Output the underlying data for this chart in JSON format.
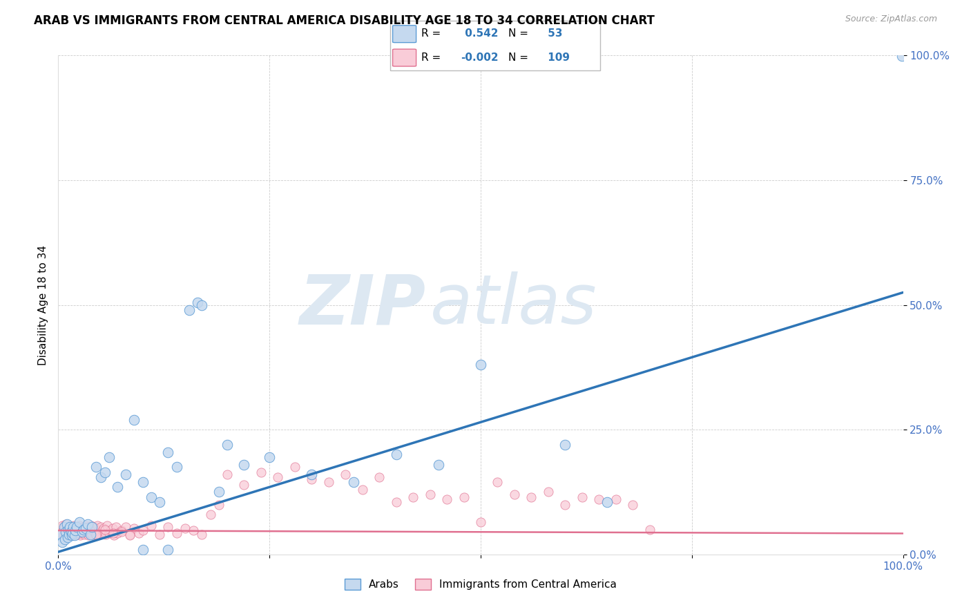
{
  "title": "ARAB VS IMMIGRANTS FROM CENTRAL AMERICA DISABILITY AGE 18 TO 34 CORRELATION CHART",
  "source": "Source: ZipAtlas.com",
  "ylabel": "Disability Age 18 to 34",
  "xlim": [
    0,
    1
  ],
  "ylim": [
    0,
    1
  ],
  "xticks": [
    0,
    0.25,
    0.5,
    0.75,
    1.0
  ],
  "yticks": [
    0,
    0.25,
    0.5,
    0.75,
    1.0
  ],
  "xticklabels": [
    "0.0%",
    "",
    "",
    "",
    "100.0%"
  ],
  "yticklabels": [
    "0.0%",
    "25.0%",
    "50.0%",
    "75.0%",
    "100.0%"
  ],
  "arab_fill_color": "#c5d9ef",
  "arab_edge_color": "#5b9bd5",
  "immigrant_fill_color": "#f9ccd8",
  "immigrant_edge_color": "#e07090",
  "arab_line_color": "#2e75b6",
  "immigrant_line_color": "#e07090",
  "arab_R": 0.542,
  "arab_N": 53,
  "immigrant_R": -0.002,
  "immigrant_N": 109,
  "watermark_zip": "ZIP",
  "watermark_atlas": "atlas",
  "background_color": "#ffffff",
  "grid_color": "#cccccc",
  "arab_trend_x0": 0.0,
  "arab_trend_y0": 0.005,
  "arab_trend_x1": 1.0,
  "arab_trend_y1": 0.525,
  "immigrant_trend_x0": 0.0,
  "immigrant_trend_y0": 0.048,
  "immigrant_trend_x1": 1.0,
  "immigrant_trend_y1": 0.042,
  "arab_x": [
    0.003,
    0.005,
    0.007,
    0.008,
    0.009,
    0.01,
    0.011,
    0.012,
    0.013,
    0.014,
    0.015,
    0.016,
    0.017,
    0.018,
    0.019,
    0.02,
    0.022,
    0.025,
    0.028,
    0.03,
    0.032,
    0.035,
    0.038,
    0.04,
    0.045,
    0.05,
    0.055,
    0.06,
    0.07,
    0.08,
    0.09,
    0.1,
    0.11,
    0.12,
    0.13,
    0.14,
    0.155,
    0.165,
    0.17,
    0.19,
    0.2,
    0.22,
    0.25,
    0.3,
    0.35,
    0.4,
    0.45,
    0.5,
    0.6,
    0.65,
    0.13,
    0.1,
    0.999
  ],
  "arab_y": [
    0.04,
    0.025,
    0.055,
    0.03,
    0.045,
    0.06,
    0.035,
    0.05,
    0.04,
    0.055,
    0.045,
    0.038,
    0.042,
    0.055,
    0.038,
    0.048,
    0.055,
    0.065,
    0.045,
    0.05,
    0.052,
    0.06,
    0.04,
    0.055,
    0.175,
    0.155,
    0.165,
    0.195,
    0.135,
    0.16,
    0.27,
    0.145,
    0.115,
    0.105,
    0.205,
    0.175,
    0.49,
    0.505,
    0.5,
    0.125,
    0.22,
    0.18,
    0.195,
    0.16,
    0.145,
    0.2,
    0.18,
    0.38,
    0.22,
    0.105,
    0.01,
    0.01,
    0.999
  ],
  "immigrant_x": [
    0.002,
    0.003,
    0.004,
    0.005,
    0.006,
    0.007,
    0.008,
    0.009,
    0.01,
    0.011,
    0.012,
    0.013,
    0.014,
    0.015,
    0.016,
    0.017,
    0.018,
    0.019,
    0.02,
    0.021,
    0.022,
    0.023,
    0.024,
    0.025,
    0.026,
    0.027,
    0.028,
    0.029,
    0.03,
    0.031,
    0.032,
    0.033,
    0.034,
    0.035,
    0.036,
    0.037,
    0.038,
    0.039,
    0.04,
    0.041,
    0.042,
    0.043,
    0.044,
    0.045,
    0.046,
    0.047,
    0.048,
    0.049,
    0.05,
    0.052,
    0.054,
    0.056,
    0.058,
    0.06,
    0.062,
    0.064,
    0.066,
    0.068,
    0.07,
    0.075,
    0.08,
    0.085,
    0.09,
    0.095,
    0.1,
    0.11,
    0.12,
    0.13,
    0.14,
    0.15,
    0.16,
    0.17,
    0.18,
    0.19,
    0.2,
    0.22,
    0.24,
    0.26,
    0.28,
    0.3,
    0.32,
    0.34,
    0.36,
    0.38,
    0.4,
    0.42,
    0.44,
    0.46,
    0.48,
    0.5,
    0.52,
    0.54,
    0.56,
    0.58,
    0.6,
    0.62,
    0.64,
    0.66,
    0.68,
    0.7,
    0.009,
    0.015,
    0.025,
    0.035,
    0.045,
    0.055,
    0.065,
    0.075,
    0.085
  ],
  "immigrant_y": [
    0.048,
    0.052,
    0.043,
    0.058,
    0.038,
    0.055,
    0.042,
    0.06,
    0.045,
    0.05,
    0.04,
    0.055,
    0.048,
    0.045,
    0.052,
    0.038,
    0.058,
    0.042,
    0.055,
    0.048,
    0.04,
    0.055,
    0.043,
    0.058,
    0.038,
    0.052,
    0.048,
    0.042,
    0.055,
    0.04,
    0.058,
    0.043,
    0.048,
    0.052,
    0.038,
    0.055,
    0.042,
    0.058,
    0.04,
    0.048,
    0.055,
    0.043,
    0.052,
    0.038,
    0.058,
    0.042,
    0.048,
    0.04,
    0.055,
    0.048,
    0.052,
    0.04,
    0.058,
    0.043,
    0.048,
    0.052,
    0.038,
    0.055,
    0.042,
    0.048,
    0.055,
    0.04,
    0.052,
    0.043,
    0.048,
    0.058,
    0.04,
    0.055,
    0.043,
    0.052,
    0.048,
    0.04,
    0.08,
    0.1,
    0.16,
    0.14,
    0.165,
    0.155,
    0.175,
    0.15,
    0.145,
    0.16,
    0.13,
    0.155,
    0.105,
    0.115,
    0.12,
    0.11,
    0.115,
    0.065,
    0.145,
    0.12,
    0.115,
    0.125,
    0.1,
    0.115,
    0.11,
    0.11,
    0.1,
    0.05,
    0.038,
    0.048,
    0.042,
    0.055,
    0.04,
    0.05,
    0.043,
    0.045,
    0.038
  ]
}
